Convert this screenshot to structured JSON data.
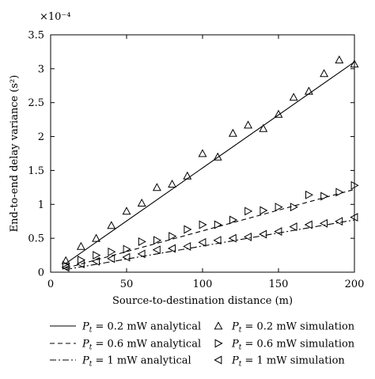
{
  "chart_data": {
    "type": "line",
    "xlabel": "Source-to-destination distance (m)",
    "ylabel": "End-to-end delay variance (s²)",
    "y_scale_label": "×10⁻⁴",
    "xlim": [
      0,
      200
    ],
    "ylim": [
      0,
      3.5
    ],
    "xticks": [
      "0",
      "50",
      "100",
      "150",
      "200"
    ],
    "yticks": [
      "0",
      "0.5",
      "1",
      "1.5",
      "2",
      "2.5",
      "3",
      "3.5"
    ],
    "xtick_values": [
      0,
      50,
      100,
      150,
      200
    ],
    "ytick_values": [
      0,
      0.5,
      1,
      1.5,
      2,
      2.5,
      3,
      3.5
    ],
    "grid": false,
    "legend_position": "below",
    "series": [
      {
        "name": "P_t = 0.2 mW analytical",
        "legend_parts": [
          "P",
          "t",
          " = 0.2 mW analytical"
        ],
        "style": "solid",
        "x": [
          10,
          200
        ],
        "y": [
          0.13,
          3.1
        ]
      },
      {
        "name": "P_t = 0.6 mW analytical",
        "legend_parts": [
          "P",
          "t",
          " = 0.6 mW analytical"
        ],
        "style": "dashed",
        "x": [
          10,
          200
        ],
        "y": [
          0.06,
          1.22
        ]
      },
      {
        "name": "P_t = 1 mW analytical",
        "legend_parts": [
          "P",
          "t",
          " = 1 mW analytical"
        ],
        "style": "dashdot",
        "x": [
          10,
          200
        ],
        "y": [
          0.04,
          0.77
        ]
      },
      {
        "name": "P_t = 0.2 mW simulation",
        "legend_parts": [
          "P",
          "t",
          " = 0.2 mW simulation"
        ],
        "marker": "triangle-up",
        "x": [
          10,
          20,
          30,
          40,
          50,
          60,
          70,
          80,
          90,
          100,
          110,
          120,
          130,
          140,
          150,
          160,
          170,
          180,
          190,
          200
        ],
        "y": [
          0.17,
          0.38,
          0.5,
          0.69,
          0.9,
          1.02,
          1.25,
          1.3,
          1.42,
          1.75,
          1.7,
          2.05,
          2.17,
          2.12,
          2.33,
          2.58,
          2.67,
          2.93,
          3.13,
          3.07
        ]
      },
      {
        "name": "P_t = 0.6 mW simulation",
        "legend_parts": [
          "P",
          "t",
          " = 0.6 mW simulation"
        ],
        "marker": "triangle-right",
        "x": [
          10,
          20,
          30,
          40,
          50,
          60,
          70,
          80,
          90,
          100,
          110,
          120,
          130,
          140,
          150,
          160,
          170,
          180,
          190,
          200
        ],
        "y": [
          0.1,
          0.18,
          0.25,
          0.3,
          0.34,
          0.45,
          0.47,
          0.53,
          0.63,
          0.7,
          0.7,
          0.77,
          0.9,
          0.91,
          0.96,
          0.96,
          1.14,
          1.12,
          1.18,
          1.28
        ]
      },
      {
        "name": "P_t = 1 mW simulation",
        "legend_parts": [
          "P",
          "t",
          " = 1 mW simulation"
        ],
        "marker": "triangle-left",
        "x": [
          10,
          20,
          30,
          40,
          50,
          60,
          70,
          80,
          90,
          100,
          110,
          120,
          130,
          140,
          150,
          160,
          170,
          180,
          190,
          200
        ],
        "y": [
          0.07,
          0.12,
          0.16,
          0.2,
          0.22,
          0.27,
          0.33,
          0.35,
          0.38,
          0.44,
          0.47,
          0.5,
          0.52,
          0.56,
          0.6,
          0.67,
          0.7,
          0.72,
          0.75,
          0.81
        ]
      }
    ]
  }
}
